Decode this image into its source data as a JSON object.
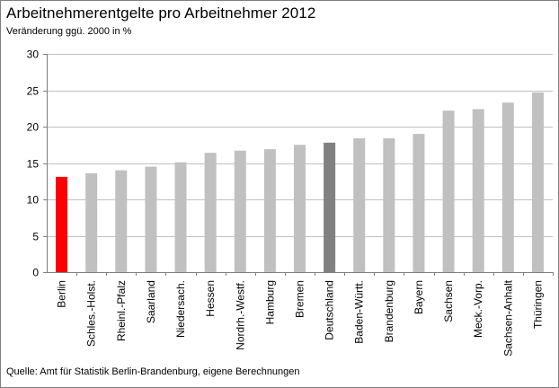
{
  "chart_data": {
    "type": "bar",
    "title": "Arbeitnehmerentgelte  pro  Arbeitnehmer  2012",
    "subtitle": "Veränderung ggü. 2000 in %",
    "source": "Quelle: Amt für Statistik Berlin-Brandenburg,  eigene Berechnungen",
    "xlabel": "",
    "ylabel": "",
    "ylim": [
      0,
      30
    ],
    "yticks": [
      "0",
      "5",
      "10",
      "15",
      "20",
      "25",
      "30"
    ],
    "grid": true,
    "legend": "none",
    "categories": [
      "Berlin",
      "Schles.-Holst.",
      "Rheinl.-Pfalz",
      "Saarland",
      "Niedersach.",
      "Hessen",
      "Nordrh.-Westf.",
      "Hamburg",
      "Bremen",
      "Deutschland",
      "Baden-Württ.",
      "Brandenburg",
      "Bayern",
      "Sachsen",
      "Meck.-Vorp.",
      "Sachsen-Anhalt",
      "Thüringen"
    ],
    "values": [
      13.1,
      13.6,
      14.0,
      14.5,
      15.1,
      16.4,
      16.7,
      16.9,
      17.5,
      17.8,
      18.4,
      18.4,
      19.0,
      22.2,
      22.4,
      23.3,
      24.7
    ],
    "colors": {
      "default": "#c0c0c0",
      "Berlin": "#ff0000",
      "Deutschland": "#808080",
      "grid": "#c0c0c0",
      "axis": "#7f7f7f"
    }
  }
}
